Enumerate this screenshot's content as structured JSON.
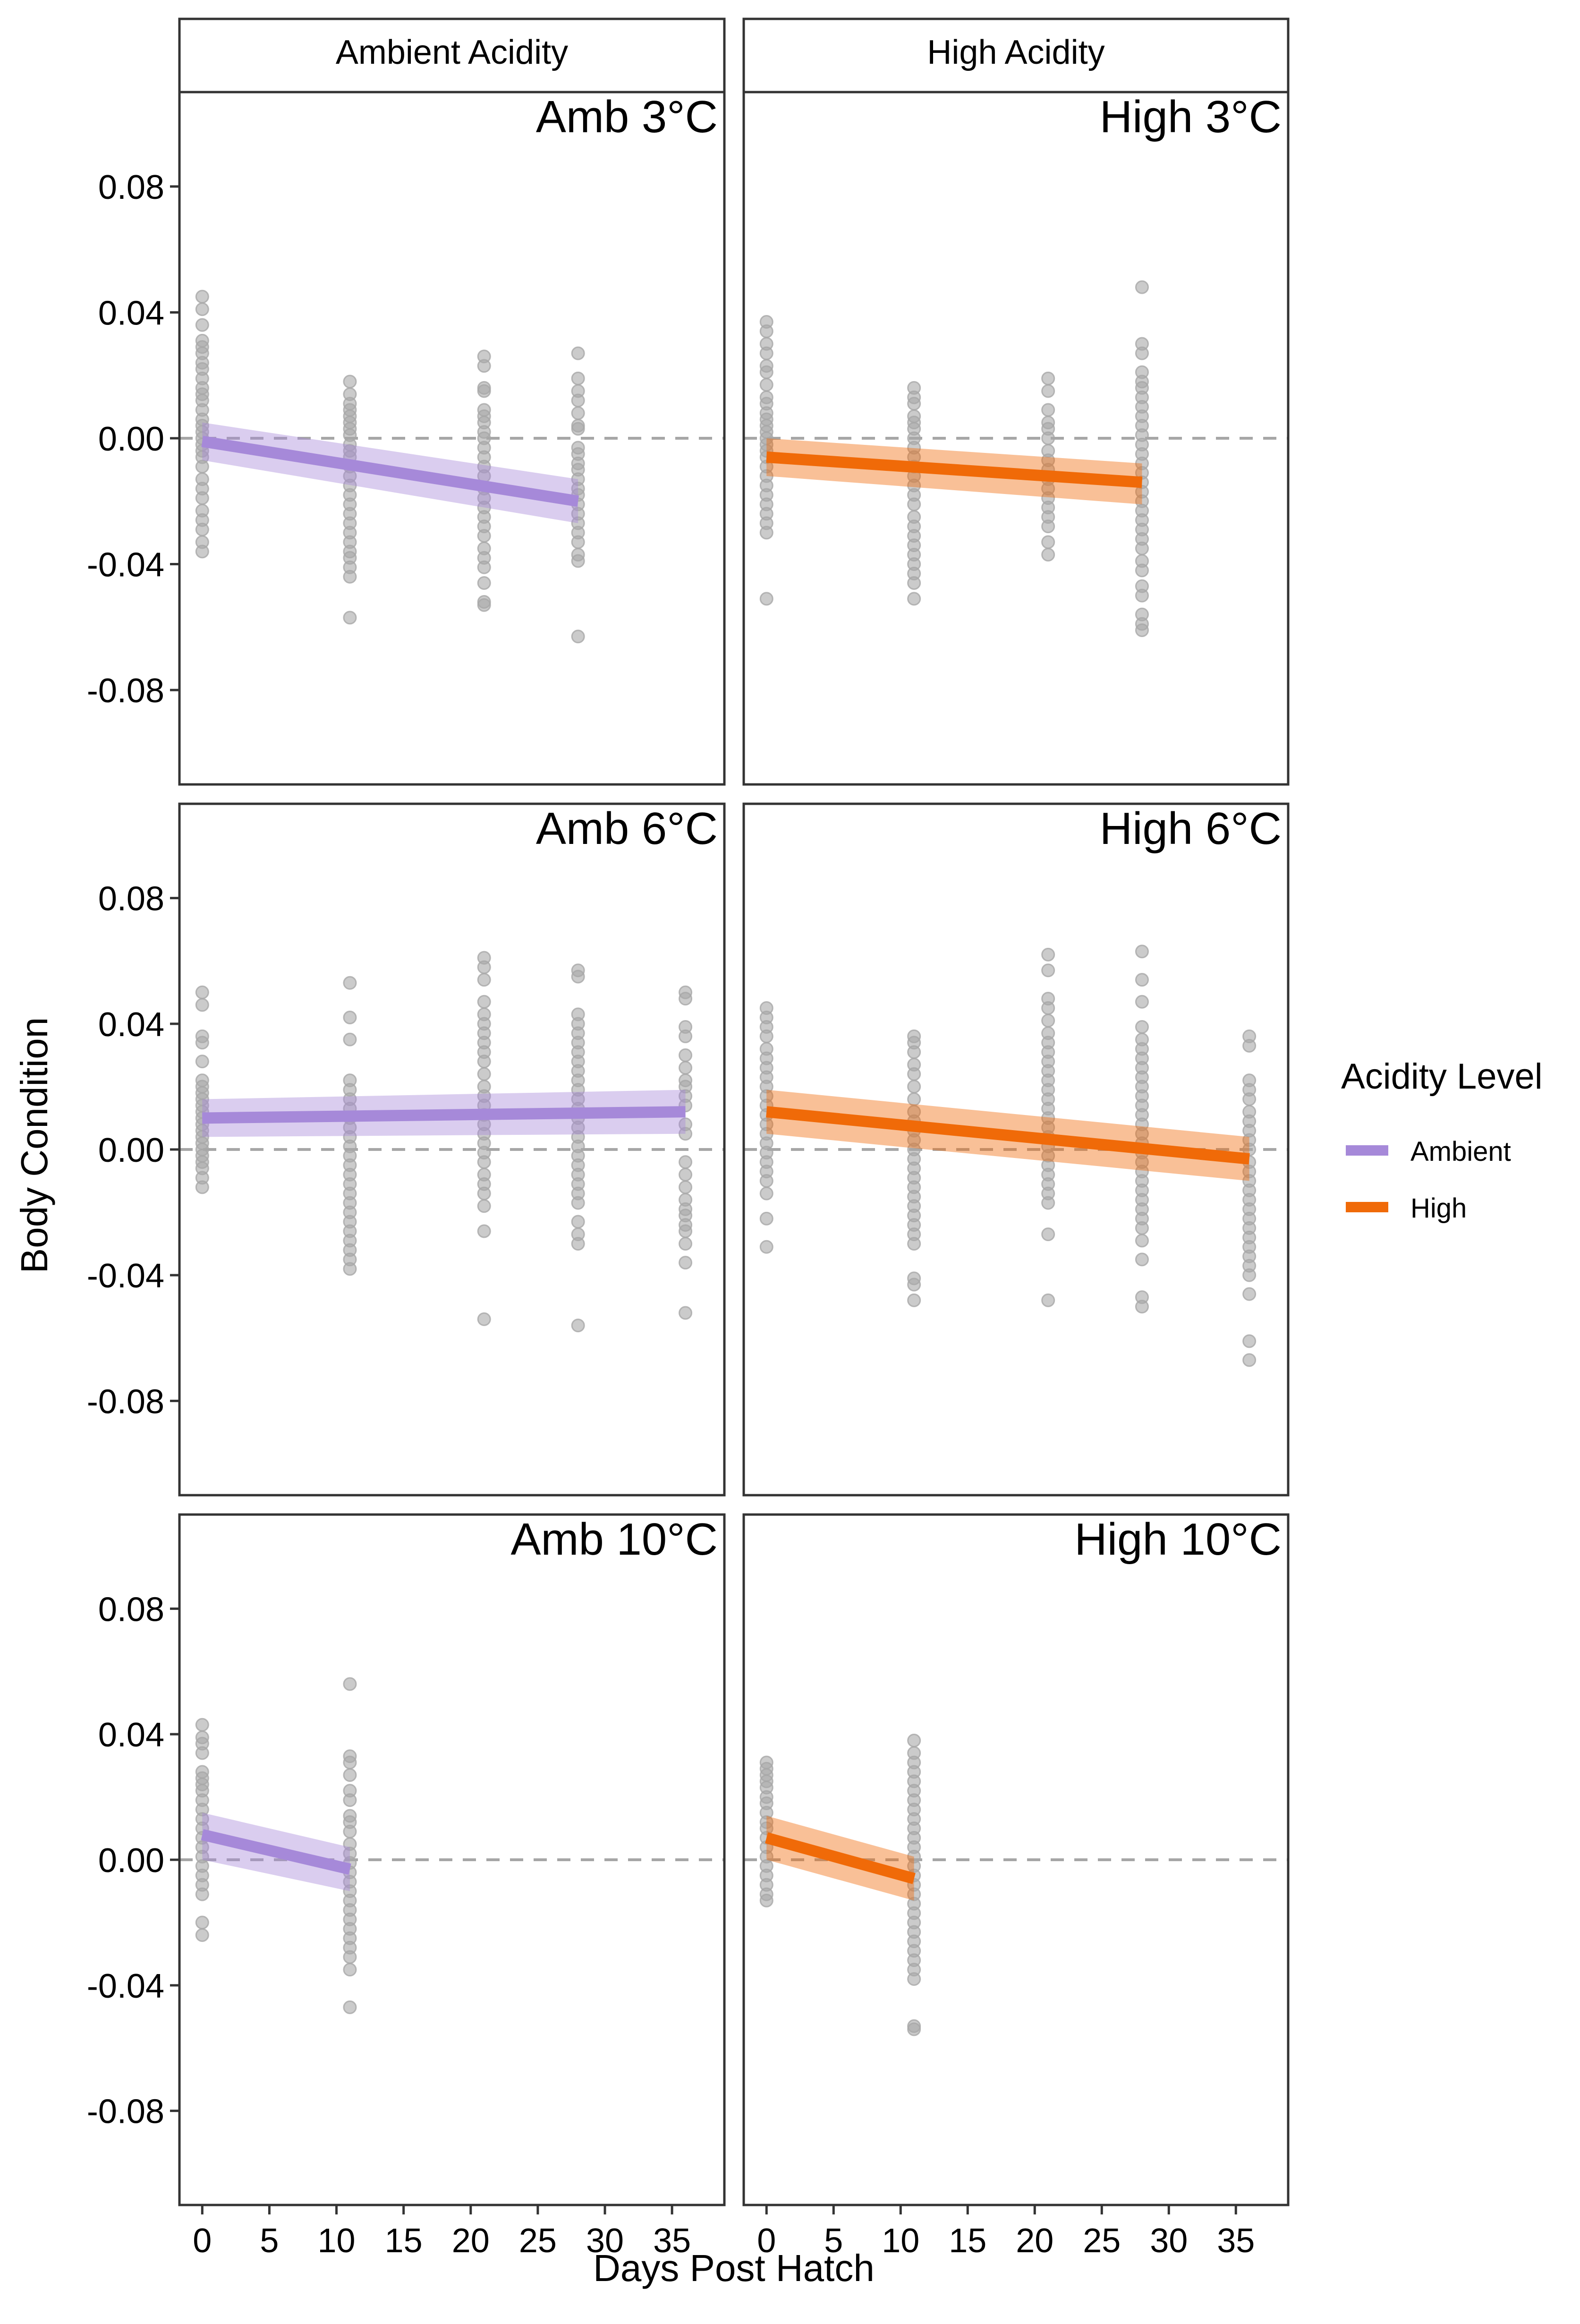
{
  "chart_data": {
    "type": "scatter",
    "title": "",
    "xlabel": "Days Post Hatch",
    "ylabel": "Body Condition",
    "xlim": [
      -1.7,
      38.9
    ],
    "ylim": [
      -0.11,
      0.11
    ],
    "x_ticks": [
      0,
      5,
      10,
      15,
      20,
      25,
      30,
      35
    ],
    "x_tick_labels": [
      "0",
      "5",
      "10",
      "15",
      "20",
      "25",
      "30",
      "35"
    ],
    "y_ticks": [
      0.08,
      0.04,
      0.0,
      -0.04,
      -0.08
    ],
    "y_tick_labels": [
      "0.08",
      "0.04",
      "0.00",
      "-0.04",
      "-0.08"
    ],
    "reference_line": {
      "y": 0.0,
      "style": "dashed",
      "color": "#a6a6a6"
    },
    "grid": false,
    "column_strips": [
      "Ambient Acidity",
      "High Acidity"
    ],
    "legend": {
      "title": "Acidity Level",
      "placement": "right",
      "entries": [
        {
          "label": "Ambient",
          "color": "#a689d9"
        },
        {
          "label": "High",
          "color": "#f06a08"
        }
      ]
    },
    "colors": {
      "Ambient": {
        "line": "#a689d9",
        "band": "#d8cdf0"
      },
      "High": {
        "line": "#f06a08",
        "band": "#f8c39b"
      },
      "points": "#a8a8a8",
      "frame": "#333333"
    },
    "panels": [
      {
        "label": "Amb 3°C",
        "row": 0,
        "col": 0,
        "group": "Ambient",
        "fit": {
          "x": [
            0,
            28
          ],
          "y": [
            -0.001,
            -0.02
          ],
          "lower": [
            -0.007,
            -0.027
          ],
          "upper": [
            0.005,
            -0.013
          ]
        },
        "points": [
          {
            "x": 0,
            "y": [
              0.045,
              0.041,
              0.036,
              0.031,
              0.029,
              0.027,
              0.024,
              0.022,
              0.019,
              0.016,
              0.014,
              0.012,
              0.009,
              0.006,
              0.004,
              0.002,
              0.0,
              -0.002,
              -0.004,
              -0.006,
              -0.009,
              -0.013,
              -0.016,
              -0.019,
              -0.023,
              -0.026,
              -0.029,
              -0.033,
              -0.036
            ]
          },
          {
            "x": 11,
            "y": [
              0.018,
              0.014,
              0.011,
              0.009,
              0.007,
              0.005,
              0.003,
              0.001,
              -0.002,
              -0.004,
              -0.006,
              -0.009,
              -0.012,
              -0.015,
              -0.018,
              -0.021,
              -0.024,
              -0.027,
              -0.03,
              -0.033,
              -0.036,
              -0.038,
              -0.041,
              -0.044,
              -0.057
            ]
          },
          {
            "x": 21,
            "y": [
              0.026,
              0.023,
              0.016,
              0.015,
              0.009,
              0.007,
              0.005,
              0.002,
              0.0,
              -0.003,
              -0.006,
              -0.009,
              -0.012,
              -0.016,
              -0.019,
              -0.022,
              -0.025,
              -0.028,
              -0.031,
              -0.035,
              -0.038,
              -0.041,
              -0.046,
              -0.052,
              -0.053
            ]
          },
          {
            "x": 28,
            "y": [
              0.027,
              0.019,
              0.015,
              0.012,
              0.008,
              0.004,
              0.003,
              -0.003,
              -0.005,
              -0.008,
              -0.01,
              -0.013,
              -0.016,
              -0.018,
              -0.021,
              -0.024,
              -0.027,
              -0.03,
              -0.033,
              -0.037,
              -0.039,
              -0.063
            ]
          }
        ]
      },
      {
        "label": "High 3°C",
        "row": 0,
        "col": 1,
        "group": "High",
        "fit": {
          "x": [
            0,
            28
          ],
          "y": [
            -0.006,
            -0.014
          ],
          "lower": [
            -0.012,
            -0.021
          ],
          "upper": [
            0.0,
            -0.008
          ]
        },
        "points": [
          {
            "x": 0,
            "y": [
              0.037,
              0.034,
              0.03,
              0.027,
              0.023,
              0.021,
              0.017,
              0.013,
              0.011,
              0.008,
              0.006,
              0.004,
              0.002,
              0.0,
              -0.002,
              -0.004,
              -0.006,
              -0.009,
              -0.012,
              -0.015,
              -0.018,
              -0.021,
              -0.024,
              -0.027,
              -0.03,
              -0.051
            ]
          },
          {
            "x": 11,
            "y": [
              0.016,
              0.013,
              0.011,
              0.007,
              0.005,
              0.003,
              0.0,
              -0.003,
              -0.006,
              -0.009,
              -0.012,
              -0.015,
              -0.018,
              -0.021,
              -0.025,
              -0.028,
              -0.031,
              -0.034,
              -0.037,
              -0.04,
              -0.043,
              -0.046,
              -0.051
            ]
          },
          {
            "x": 21,
            "y": [
              0.019,
              0.015,
              0.009,
              0.005,
              0.003,
              0.0,
              -0.004,
              -0.007,
              -0.01,
              -0.013,
              -0.016,
              -0.019,
              -0.022,
              -0.025,
              -0.028,
              -0.033,
              -0.037
            ]
          },
          {
            "x": 28,
            "y": [
              0.048,
              0.03,
              0.027,
              0.021,
              0.018,
              0.016,
              0.013,
              0.01,
              0.007,
              0.004,
              0.001,
              -0.002,
              -0.005,
              -0.008,
              -0.011,
              -0.014,
              -0.017,
              -0.02,
              -0.023,
              -0.026,
              -0.029,
              -0.032,
              -0.035,
              -0.039,
              -0.042,
              -0.047,
              -0.05,
              -0.056,
              -0.059,
              -0.061
            ]
          }
        ]
      },
      {
        "label": "Amb 6°C",
        "row": 1,
        "col": 0,
        "group": "Ambient",
        "fit": {
          "x": [
            0,
            36
          ],
          "y": [
            0.01,
            0.012
          ],
          "lower": [
            0.004,
            0.005
          ],
          "upper": [
            0.016,
            0.019
          ]
        },
        "points": [
          {
            "x": 0,
            "y": [
              0.05,
              0.046,
              0.036,
              0.034,
              0.028,
              0.022,
              0.02,
              0.018,
              0.016,
              0.014,
              0.012,
              0.01,
              0.008,
              0.006,
              0.004,
              0.002,
              0.0,
              -0.002,
              -0.004,
              -0.006,
              -0.009,
              -0.012
            ]
          },
          {
            "x": 11,
            "y": [
              0.053,
              0.042,
              0.035,
              0.022,
              0.019,
              0.016,
              0.013,
              0.01,
              0.007,
              0.004,
              0.001,
              -0.002,
              -0.005,
              -0.008,
              -0.011,
              -0.014,
              -0.017,
              -0.02,
              -0.023,
              -0.026,
              -0.029,
              -0.032,
              -0.035,
              -0.038
            ]
          },
          {
            "x": 21,
            "y": [
              0.061,
              0.058,
              0.054,
              0.047,
              0.043,
              0.04,
              0.037,
              0.034,
              0.031,
              0.028,
              0.024,
              0.02,
              0.017,
              0.014,
              0.011,
              0.008,
              0.005,
              0.002,
              -0.001,
              -0.004,
              -0.008,
              -0.011,
              -0.014,
              -0.018,
              -0.026,
              -0.054
            ]
          },
          {
            "x": 28,
            "y": [
              0.057,
              0.055,
              0.043,
              0.04,
              0.037,
              0.034,
              0.031,
              0.028,
              0.025,
              0.022,
              0.019,
              0.016,
              0.013,
              0.01,
              0.007,
              0.004,
              0.001,
              -0.002,
              -0.005,
              -0.008,
              -0.011,
              -0.014,
              -0.017,
              -0.023,
              -0.027,
              -0.03,
              -0.056
            ]
          },
          {
            "x": 36,
            "y": [
              0.05,
              0.048,
              0.039,
              0.036,
              0.03,
              0.026,
              0.022,
              0.02,
              0.017,
              0.014,
              0.008,
              0.005,
              -0.004,
              -0.008,
              -0.012,
              -0.016,
              -0.019,
              -0.021,
              -0.024,
              -0.026,
              -0.03,
              -0.036,
              -0.052
            ]
          }
        ]
      },
      {
        "label": "High 6°C",
        "row": 1,
        "col": 1,
        "group": "High",
        "fit": {
          "x": [
            0,
            36
          ],
          "y": [
            0.012,
            -0.003
          ],
          "lower": [
            0.005,
            -0.01
          ],
          "upper": [
            0.019,
            0.004
          ]
        },
        "points": [
          {
            "x": 0,
            "y": [
              0.045,
              0.042,
              0.039,
              0.036,
              0.032,
              0.029,
              0.026,
              0.023,
              0.02,
              0.017,
              0.014,
              0.011,
              0.008,
              0.005,
              0.002,
              -0.001,
              -0.004,
              -0.007,
              -0.01,
              -0.014,
              -0.022,
              -0.031
            ]
          },
          {
            "x": 11,
            "y": [
              0.036,
              0.034,
              0.031,
              0.027,
              0.024,
              0.02,
              0.016,
              0.012,
              0.009,
              0.006,
              0.003,
              0.0,
              -0.003,
              -0.006,
              -0.009,
              -0.012,
              -0.015,
              -0.018,
              -0.021,
              -0.024,
              -0.027,
              -0.03,
              -0.041,
              -0.043,
              -0.048
            ]
          },
          {
            "x": 21,
            "y": [
              0.062,
              0.057,
              0.048,
              0.045,
              0.041,
              0.037,
              0.034,
              0.031,
              0.028,
              0.025,
              0.022,
              0.019,
              0.016,
              0.013,
              0.01,
              0.007,
              0.004,
              0.001,
              -0.002,
              -0.005,
              -0.008,
              -0.011,
              -0.014,
              -0.017,
              -0.027,
              -0.048
            ]
          },
          {
            "x": 28,
            "y": [
              0.063,
              0.054,
              0.047,
              0.039,
              0.035,
              0.032,
              0.029,
              0.026,
              0.023,
              0.02,
              0.017,
              0.014,
              0.011,
              0.008,
              0.005,
              0.002,
              -0.001,
              -0.004,
              -0.007,
              -0.01,
              -0.013,
              -0.016,
              -0.019,
              -0.022,
              -0.025,
              -0.029,
              -0.035,
              -0.047,
              -0.05
            ]
          },
          {
            "x": 36,
            "y": [
              0.036,
              0.033,
              0.022,
              0.019,
              0.016,
              0.012,
              0.009,
              0.006,
              0.003,
              0.0,
              -0.004,
              -0.007,
              -0.01,
              -0.013,
              -0.016,
              -0.019,
              -0.022,
              -0.025,
              -0.028,
              -0.031,
              -0.034,
              -0.037,
              -0.04,
              -0.046,
              -0.061,
              -0.067
            ]
          }
        ]
      },
      {
        "label": "Amb 10°C",
        "row": 2,
        "col": 0,
        "group": "Ambient",
        "fit": {
          "x": [
            0,
            11
          ],
          "y": [
            0.008,
            -0.003
          ],
          "lower": [
            0.0,
            -0.01
          ],
          "upper": [
            0.015,
            0.004
          ]
        },
        "points": [
          {
            "x": 0,
            "y": [
              0.043,
              0.039,
              0.037,
              0.034,
              0.028,
              0.026,
              0.024,
              0.022,
              0.019,
              0.016,
              0.013,
              0.01,
              0.007,
              0.004,
              0.001,
              -0.002,
              -0.005,
              -0.008,
              -0.011,
              -0.02,
              -0.024
            ]
          },
          {
            "x": 11,
            "y": [
              0.056,
              0.033,
              0.031,
              0.027,
              0.022,
              0.019,
              0.014,
              0.012,
              0.009,
              0.005,
              0.002,
              -0.001,
              -0.004,
              -0.007,
              -0.01,
              -0.013,
              -0.016,
              -0.019,
              -0.022,
              -0.025,
              -0.028,
              -0.031,
              -0.035,
              -0.047
            ]
          }
        ]
      },
      {
        "label": "High 10°C",
        "row": 2,
        "col": 1,
        "group": "High",
        "fit": {
          "x": [
            0,
            11
          ],
          "y": [
            0.007,
            -0.006
          ],
          "lower": [
            0.0,
            -0.013
          ],
          "upper": [
            0.014,
            0.001
          ]
        },
        "points": [
          {
            "x": 0,
            "y": [
              0.031,
              0.029,
              0.027,
              0.025,
              0.023,
              0.02,
              0.018,
              0.015,
              0.012,
              0.01,
              0.007,
              0.004,
              0.001,
              -0.002,
              -0.005,
              -0.008,
              -0.011,
              -0.013
            ]
          },
          {
            "x": 11,
            "y": [
              0.038,
              0.034,
              0.031,
              0.028,
              0.025,
              0.022,
              0.019,
              0.016,
              0.013,
              0.01,
              0.007,
              0.004,
              0.001,
              -0.002,
              -0.005,
              -0.008,
              -0.011,
              -0.014,
              -0.017,
              -0.02,
              -0.023,
              -0.026,
              -0.029,
              -0.032,
              -0.035,
              -0.038,
              -0.053,
              -0.054
            ]
          }
        ]
      }
    ]
  }
}
